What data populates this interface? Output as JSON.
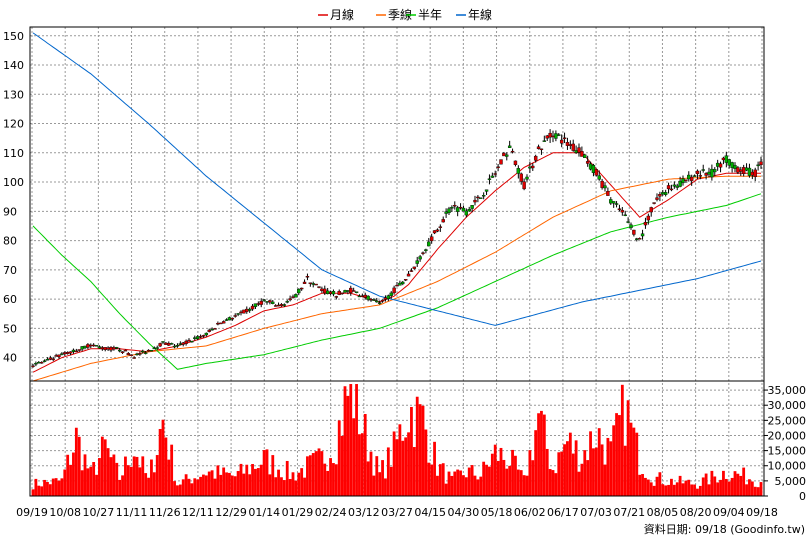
{
  "chart_data": [
    {
      "type": "candlestick",
      "legend": {
        "placement": "top-center",
        "items": [
          {
            "name": "月線",
            "color": "#dd0000"
          },
          {
            "name": "季線",
            "color": "#ff6600"
          },
          {
            "name": "半年",
            "color": "#00cc00"
          },
          {
            "name": "年線",
            "color": "#0066cc"
          }
        ]
      },
      "y_ticks": [
        "150",
        "140",
        "130",
        "120",
        "110",
        "100",
        "90",
        "80",
        "70",
        "60",
        "50",
        "40"
      ],
      "ylim": [
        32,
        153
      ],
      "x_ticks": [
        "09/19",
        "10/08",
        "10/27",
        "11/11",
        "11/26",
        "12/11",
        "12/29",
        "01/14",
        "01/29",
        "02/24",
        "03/12",
        "03/27",
        "04/15",
        "04/30",
        "05/18",
        "06/02",
        "06/17",
        "07/03",
        "07/21",
        "08/05",
        "08/20",
        "09/04",
        "09/18"
      ],
      "grid": true,
      "candle_colors": {
        "up": "#dd0000",
        "down": "#00aa00",
        "neutral": "#000000"
      },
      "price_anchors": [
        [
          0,
          37.5
        ],
        [
          5,
          39
        ],
        [
          10,
          41
        ],
        [
          15,
          42.5
        ],
        [
          20,
          44.5
        ],
        [
          25,
          43
        ],
        [
          30,
          43
        ],
        [
          35,
          40.5
        ],
        [
          40,
          42.5
        ],
        [
          45,
          45
        ],
        [
          50,
          44
        ],
        [
          55,
          46
        ],
        [
          60,
          48
        ],
        [
          65,
          52
        ],
        [
          70,
          54
        ],
        [
          75,
          56.5
        ],
        [
          80,
          59.5
        ],
        [
          85,
          57.5
        ],
        [
          90,
          60
        ],
        [
          95,
          67
        ],
        [
          100,
          63
        ],
        [
          105,
          61.5
        ],
        [
          110,
          63
        ],
        [
          115,
          61
        ],
        [
          120,
          58
        ],
        [
          125,
          63
        ],
        [
          130,
          68
        ],
        [
          135,
          76
        ],
        [
          140,
          84
        ],
        [
          145,
          92
        ],
        [
          150,
          90
        ],
        [
          155,
          95
        ],
        [
          160,
          103
        ],
        [
          165,
          112
        ],
        [
          170,
          99
        ],
        [
          175,
          111
        ],
        [
          180,
          117
        ],
        [
          185,
          113
        ],
        [
          190,
          110
        ],
        [
          195,
          103
        ],
        [
          200,
          94
        ],
        [
          205,
          88
        ],
        [
          210,
          80
        ],
        [
          215,
          93
        ],
        [
          220,
          98
        ],
        [
          225,
          100
        ],
        [
          230,
          103
        ],
        [
          235,
          103
        ],
        [
          240,
          108
        ],
        [
          245,
          104
        ],
        [
          250,
          103
        ],
        [
          252,
          107
        ]
      ],
      "ma_month": [
        [
          0,
          35
        ],
        [
          10,
          40
        ],
        [
          20,
          43
        ],
        [
          30,
          43
        ],
        [
          40,
          42
        ],
        [
          50,
          44
        ],
        [
          60,
          47
        ],
        [
          70,
          51
        ],
        [
          80,
          56
        ],
        [
          90,
          58
        ],
        [
          100,
          62
        ],
        [
          110,
          62
        ],
        [
          120,
          59
        ],
        [
          125,
          61
        ],
        [
          130,
          65
        ],
        [
          140,
          77
        ],
        [
          150,
          88
        ],
        [
          160,
          97
        ],
        [
          170,
          105
        ],
        [
          180,
          110
        ],
        [
          190,
          110
        ],
        [
          200,
          99
        ],
        [
          210,
          88
        ],
        [
          220,
          94
        ],
        [
          230,
          101
        ],
        [
          240,
          103
        ],
        [
          252,
          103
        ]
      ],
      "ma_season": [
        [
          0,
          32
        ],
        [
          20,
          38
        ],
        [
          40,
          42
        ],
        [
          60,
          44
        ],
        [
          80,
          50
        ],
        [
          100,
          55
        ],
        [
          120,
          58
        ],
        [
          140,
          66
        ],
        [
          160,
          76
        ],
        [
          180,
          88
        ],
        [
          200,
          97
        ],
        [
          220,
          101
        ],
        [
          240,
          102
        ],
        [
          252,
          102
        ]
      ],
      "ma_half": [
        [
          0,
          85
        ],
        [
          10,
          75
        ],
        [
          20,
          66
        ],
        [
          30,
          55
        ],
        [
          40,
          45
        ],
        [
          50,
          36
        ],
        [
          60,
          38
        ],
        [
          80,
          41
        ],
        [
          100,
          46
        ],
        [
          120,
          50
        ],
        [
          140,
          57
        ],
        [
          160,
          66
        ],
        [
          180,
          75
        ],
        [
          200,
          83
        ],
        [
          220,
          88
        ],
        [
          240,
          92
        ],
        [
          252,
          96
        ]
      ],
      "ma_year": [
        [
          0,
          151
        ],
        [
          20,
          137
        ],
        [
          40,
          120
        ],
        [
          60,
          102
        ],
        [
          80,
          86
        ],
        [
          100,
          70
        ],
        [
          120,
          61
        ],
        [
          140,
          56
        ],
        [
          160,
          51
        ],
        [
          175,
          55
        ],
        [
          190,
          59
        ],
        [
          210,
          63
        ],
        [
          230,
          67
        ],
        [
          252,
          73
        ]
      ]
    },
    {
      "type": "bar",
      "y_ticks": [
        "35,000",
        "30,000",
        "25,000",
        "20,000",
        "15,000",
        "10,000",
        "5,000",
        "0"
      ],
      "ylim": [
        0,
        38000
      ],
      "bar_color": "#ff0000",
      "volume_anchors": [
        [
          0,
          4000
        ],
        [
          10,
          5000
        ],
        [
          15,
          19000
        ],
        [
          20,
          7000
        ],
        [
          25,
          16000
        ],
        [
          30,
          6000
        ],
        [
          35,
          16000
        ],
        [
          40,
          5000
        ],
        [
          45,
          25000
        ],
        [
          50,
          4000
        ],
        [
          60,
          8000
        ],
        [
          70,
          6500
        ],
        [
          80,
          12000
        ],
        [
          90,
          7000
        ],
        [
          100,
          12000
        ],
        [
          105,
          19000
        ],
        [
          110,
          37000
        ],
        [
          115,
          20000
        ],
        [
          120,
          7000
        ],
        [
          125,
          15000
        ],
        [
          130,
          28500
        ],
        [
          135,
          25000
        ],
        [
          140,
          10000
        ],
        [
          145,
          5000
        ],
        [
          150,
          8000
        ],
        [
          155,
          7000
        ],
        [
          160,
          14000
        ],
        [
          165,
          12000
        ],
        [
          170,
          5000
        ],
        [
          175,
          26000
        ],
        [
          180,
          9000
        ],
        [
          185,
          18000
        ],
        [
          190,
          13000
        ],
        [
          195,
          21000
        ],
        [
          200,
          14000
        ],
        [
          205,
          29000
        ],
        [
          210,
          12000
        ],
        [
          215,
          6000
        ],
        [
          220,
          5000
        ],
        [
          230,
          4000
        ],
        [
          240,
          8000
        ],
        [
          252,
          5000
        ]
      ]
    }
  ],
  "footer": {
    "note": "資料日期: 09/18  (Goodinfo.tw)"
  }
}
